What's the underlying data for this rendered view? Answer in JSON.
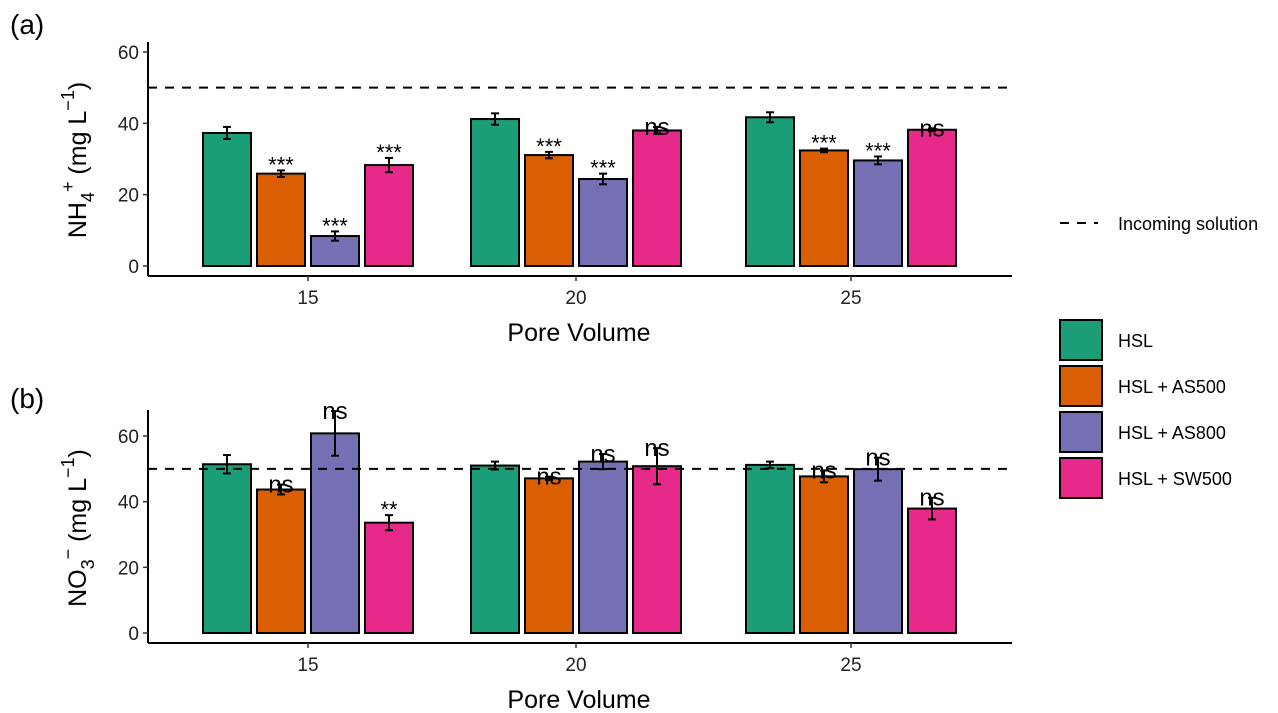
{
  "chart_data": [
    {
      "type": "bar",
      "panel_label": "(a)",
      "categories": [
        "15",
        "20",
        "25"
      ],
      "xlabel": "Pore Volume",
      "ylabel": {
        "base": "NH",
        "sub": "4",
        "sup": "+",
        "unit": " (mg L",
        "unit_sup": "−1",
        "close": ")"
      },
      "ylim": [
        0,
        63
      ],
      "yticks": [
        0,
        20,
        40,
        60
      ],
      "reference_line": {
        "value": 50,
        "label": "Incoming solution"
      },
      "series": [
        {
          "name": "HSL",
          "values": [
            37.3,
            41.2,
            41.7
          ],
          "err": [
            1.7,
            1.6,
            1.4
          ],
          "sig": [
            "",
            "",
            ""
          ]
        },
        {
          "name": "HSL + AS500",
          "values": [
            25.9,
            31.1,
            32.4
          ],
          "err": [
            0.9,
            0.9,
            0.5
          ],
          "sig": [
            "***",
            "***",
            "***"
          ]
        },
        {
          "name": "HSL + AS800",
          "values": [
            8.4,
            24.4,
            29.6
          ],
          "err": [
            1.3,
            1.5,
            1.1
          ],
          "sig": [
            "***",
            "***",
            "***"
          ]
        },
        {
          "name": "HSL + SW500",
          "values": [
            28.3,
            38.0,
            38.2
          ],
          "err": [
            2.0,
            1.0,
            0.4
          ],
          "sig": [
            "***",
            "ns",
            "ns"
          ]
        }
      ]
    },
    {
      "type": "bar",
      "panel_label": "(b)",
      "categories": [
        "15",
        "20",
        "25"
      ],
      "xlabel": "Pore Volume",
      "ylabel": {
        "base": "NO",
        "sub": "3",
        "sup": "−",
        "unit": " (mg L",
        "unit_sup": "−1",
        "close": ")"
      },
      "ylim": [
        0,
        68
      ],
      "yticks": [
        0,
        20,
        40,
        60
      ],
      "reference_line": {
        "value": 50,
        "label": "Incoming solution"
      },
      "series": [
        {
          "name": "HSL",
          "values": [
            51.4,
            51.0,
            51.2
          ],
          "err": [
            2.8,
            1.2,
            1.0
          ],
          "sig": [
            "",
            "",
            ""
          ]
        },
        {
          "name": "HSL + AS500",
          "values": [
            43.7,
            47.1,
            47.7
          ],
          "err": [
            1.5,
            0.5,
            1.8
          ],
          "sig": [
            "ns",
            "ns",
            "ns"
          ]
        },
        {
          "name": "HSL + AS800",
          "values": [
            60.8,
            52.2,
            49.9
          ],
          "err": [
            6.8,
            2.3,
            3.5
          ],
          "sig": [
            "ns",
            "ns",
            "ns"
          ]
        },
        {
          "name": "HSL + SW500",
          "values": [
            33.6,
            50.8,
            37.9
          ],
          "err": [
            2.3,
            5.5,
            3.3
          ],
          "sig": [
            "**",
            "ns",
            "ns"
          ]
        }
      ]
    }
  ],
  "legend": {
    "line_label": "Incoming solution",
    "items": [
      {
        "label": "HSL",
        "color": "#1b9e77"
      },
      {
        "label": "HSL + AS500",
        "color": "#d95f02"
      },
      {
        "label": "HSL + AS800",
        "color": "#7570b3"
      },
      {
        "label": "HSL + SW500",
        "color": "#e7298a"
      }
    ]
  },
  "colors": [
    "#1b9e77",
    "#d95f02",
    "#7570b3",
    "#e7298a"
  ]
}
